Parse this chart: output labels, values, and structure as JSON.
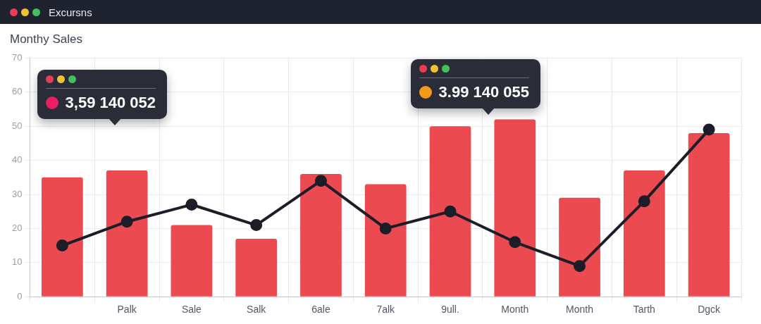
{
  "chart_data": {
    "type": "bar",
    "title": "Monthy Sales",
    "annotations": [
      "Excursns",
      "3,59 140 052",
      "3.99 140 055"
    ],
    "categories": [
      null,
      "Palk",
      "Sale",
      "Salk",
      "6ale",
      "7alk",
      "9ull.",
      "Month",
      "Month",
      "Tarth",
      "Dgck"
    ],
    "series": [
      {
        "type": "bar",
        "color": "#ea4a50",
        "values": [
          35,
          37,
          21,
          17,
          36,
          33,
          50,
          52,
          29,
          37,
          48
        ]
      },
      {
        "type": "line",
        "color": "#1c1d29",
        "values": [
          15,
          22,
          27,
          21,
          34,
          20,
          25,
          16,
          9,
          28,
          49
        ]
      }
    ],
    "ylim": [
      0,
      70
    ],
    "yticks": [
      0,
      10,
      20,
      30,
      40,
      50,
      60,
      70
    ],
    "grid": true,
    "marker": "circle",
    "line_style": "solid"
  }
}
